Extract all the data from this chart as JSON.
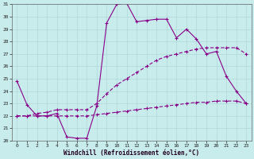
{
  "xlabel": "Windchill (Refroidissement éolien,°C)",
  "bg_color": "#c8ecec",
  "grid_color": "#b0d8d8",
  "line_color": "#880088",
  "xlim": [
    -0.5,
    23.5
  ],
  "ylim": [
    20,
    31
  ],
  "xticks": [
    0,
    1,
    2,
    3,
    4,
    5,
    6,
    7,
    8,
    9,
    10,
    11,
    12,
    13,
    14,
    15,
    16,
    17,
    18,
    19,
    20,
    21,
    22,
    23
  ],
  "yticks": [
    20,
    21,
    22,
    23,
    24,
    25,
    26,
    27,
    28,
    29,
    30,
    31
  ],
  "line1_x": [
    0,
    1,
    2,
    3,
    4,
    5,
    6,
    7,
    8,
    9,
    10,
    11,
    12,
    13,
    14,
    15,
    16,
    17,
    18,
    19,
    20,
    21,
    22,
    23
  ],
  "line1_y": [
    24.8,
    22.9,
    22.0,
    22.0,
    22.2,
    20.3,
    20.2,
    20.2,
    22.8,
    29.5,
    31.0,
    31.1,
    29.6,
    29.7,
    29.8,
    29.8,
    28.3,
    29.0,
    28.2,
    27.0,
    27.2,
    25.2,
    24.0,
    23.0
  ],
  "line2_x": [
    0,
    1,
    2,
    3,
    4,
    5,
    6,
    7,
    8,
    9,
    10,
    11,
    12,
    13,
    14,
    15,
    16,
    17,
    18,
    19,
    20,
    21,
    22,
    23
  ],
  "line2_y": [
    22.0,
    22.0,
    22.2,
    22.3,
    22.5,
    22.5,
    22.5,
    22.5,
    23.0,
    23.8,
    24.5,
    25.0,
    25.5,
    26.0,
    26.5,
    26.8,
    27.0,
    27.2,
    27.4,
    27.5,
    27.5,
    27.5,
    27.5,
    27.0
  ],
  "line3_x": [
    0,
    1,
    2,
    3,
    4,
    5,
    6,
    7,
    8,
    9,
    10,
    11,
    12,
    13,
    14,
    15,
    16,
    17,
    18,
    19,
    20,
    21,
    22,
    23
  ],
  "line3_y": [
    22.0,
    22.0,
    22.0,
    22.0,
    22.0,
    22.0,
    22.0,
    22.0,
    22.1,
    22.2,
    22.3,
    22.4,
    22.5,
    22.6,
    22.7,
    22.8,
    22.9,
    23.0,
    23.1,
    23.1,
    23.2,
    23.2,
    23.2,
    23.0
  ]
}
